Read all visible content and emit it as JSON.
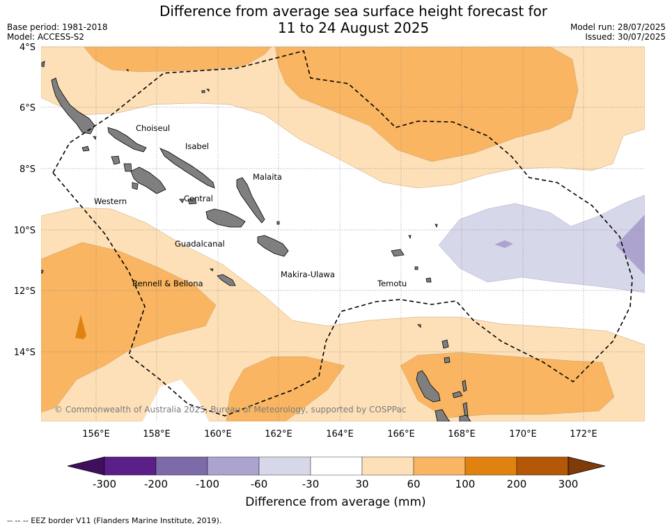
{
  "title_line1": "Difference from average sea surface height forecast for",
  "title_line2": "11 to 24 August 2025",
  "base_period": "Base period: 1981-2018",
  "model": "Model: ACCESS-S2",
  "model_run": "Model run: 28/07/2025",
  "issued": "Issued: 30/07/2025",
  "lat_ticks": [
    "4°S",
    "6°S",
    "8°S",
    "10°S",
    "12°S",
    "14°S"
  ],
  "lon_ticks": [
    "156°E",
    "158°E",
    "160°E",
    "162°E",
    "164°E",
    "166°E",
    "168°E",
    "170°E",
    "172°E"
  ],
  "places": {
    "choiseul": "Choiseul",
    "isabel": "Isabel",
    "malaita": "Malaita",
    "western": "Western",
    "central": "Central",
    "guadalcanal": "Guadalcanal",
    "makira": "Makira-Ulawa",
    "rennell": "Rennell & Bellona",
    "temotu": "Temotu"
  },
  "copyright": "© Commonwealth of Australia 2025, Bureau of Meteorology, supported by COSPPac",
  "colorbar": {
    "colors": [
      "#3f0f5e",
      "#5a2088",
      "#7d6aa8",
      "#aca3cf",
      "#d7d7ea",
      "#ffffff",
      "#fde0b8",
      "#f9b561",
      "#e0820f",
      "#b35806",
      "#7f3b08"
    ],
    "labels": [
      "-300",
      "-200",
      "-100",
      "-60",
      "-30",
      "30",
      "60",
      "100",
      "200",
      "300"
    ],
    "title": "Difference from average (mm)"
  },
  "footnote": "-- -- -- EEZ border V11 (Flanders Marine Institute, 2019)."
}
